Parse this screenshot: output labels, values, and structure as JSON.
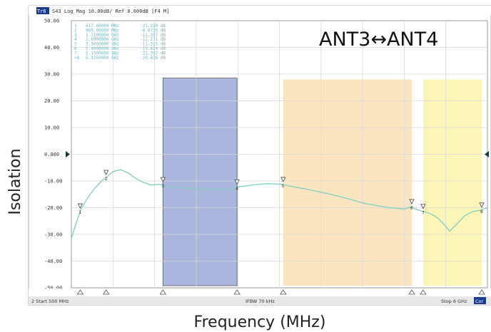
{
  "analyzer": {
    "trace_badge": "Tr6",
    "header_text": "S43 Log Mag 10.00dB/ Ref 0.000dB [F4 M]",
    "start_label": "2  Start 500 MHz",
    "ifbw_label": "IFBW 70 kHz",
    "stop_label": "Stop 6 GHz",
    "corner_badge": "Cor"
  },
  "chart_data": {
    "type": "line",
    "title": "ANT3↔ANT4",
    "xlabel": "Frequency (MHz)",
    "ylabel": "Isolation",
    "xlim": [
      500,
      6000
    ],
    "ylim": [
      -50,
      50
    ],
    "ytick_labels": [
      "50.00",
      "40.00",
      "30.00",
      "20.00",
      "10.00",
      "0.000",
      "-10.00",
      "-20.00",
      "-30.00",
      "-40.00",
      "-50.00"
    ],
    "grid": true,
    "series": [
      {
        "color": "#7fcfbf",
        "x": [
          500,
          560,
          617,
          700,
          800,
          900,
          960,
          1050,
          1150,
          1250,
          1350,
          1450,
          1550,
          1650,
          1710,
          1800,
          1900,
          2000,
          2100,
          2200,
          2300,
          2400,
          2500,
          2600,
          2690,
          2800,
          2900,
          3000,
          3100,
          3200,
          3300,
          3400,
          3500,
          3600,
          3700,
          3800,
          3900,
          4000,
          4100,
          4200,
          4300,
          4400,
          4500,
          4600,
          4700,
          4800,
          4900,
          5000,
          5050,
          5150,
          5250,
          5350,
          5450,
          5500,
          5600,
          5700,
          5800,
          5925,
          6000
        ],
        "y": [
          -31.5,
          -26,
          -21.22,
          -17,
          -13,
          -10,
          -8.67,
          -6.5,
          -5.8,
          -7,
          -9,
          -10.5,
          -11.5,
          -11.3,
          -11.4,
          -12.5,
          -12,
          -12.8,
          -12.5,
          -13.2,
          -13,
          -13.5,
          -12.8,
          -13.3,
          -12.27,
          -11.9,
          -11.5,
          -11.2,
          -11,
          -11.1,
          -11.3,
          -12,
          -12.5,
          -13,
          -13.6,
          -14.2,
          -14.8,
          -15.5,
          -16.2,
          -17,
          -17.8,
          -18.5,
          -19,
          -19.5,
          -20,
          -20.2,
          -20.5,
          -19.62,
          -20.6,
          -21.39,
          -22.2,
          -24,
          -27,
          -28.8,
          -26,
          -23,
          -21.5,
          -20.88,
          -20
        ]
      }
    ],
    "markers": [
      {
        "id": "1",
        "freq": "617.00000 MHz",
        "value": "-21.220 dB",
        "x": 617,
        "y": -21.22
      },
      {
        "id": "2",
        "freq": "960.00000 MHz",
        "value": "-8.6725 dB",
        "x": 960,
        "y": -8.67
      },
      {
        "id": "3",
        "freq": "1.7100000 GHz",
        "value": "-11.357 dB",
        "x": 1710,
        "y": -11.36
      },
      {
        "id": "4",
        "freq": "2.6900000 GHz",
        "value": "-12.271 dB",
        "x": 2690,
        "y": -12.27
      },
      {
        "id": "5",
        "freq": "3.3000000 GHz",
        "value": "-11.313 dB",
        "x": 3300,
        "y": -11.31
      },
      {
        "id": "6",
        "freq": "5.0000000 GHz",
        "value": "-19.624 dB",
        "x": 5000,
        "y": -19.62
      },
      {
        "id": "7",
        "freq": "5.1500000 GHz",
        "value": "-21.392 dB",
        "x": 5150,
        "y": -21.39
      },
      {
        "id": ">8",
        "freq": "5.9250000 GHz",
        "value": "-20.876 dB",
        "x": 5925,
        "y": -20.88
      }
    ],
    "bands": [
      {
        "x0": 1710,
        "x1": 2690,
        "top": 28.5,
        "color": "#aab6dd",
        "border": "#555555"
      },
      {
        "x0": 3300,
        "x1": 5000,
        "top": 28,
        "color": "#fbe4c0"
      },
      {
        "x0": 5150,
        "x1": 5925,
        "top": 28,
        "color": "#fbf6b8"
      }
    ]
  }
}
